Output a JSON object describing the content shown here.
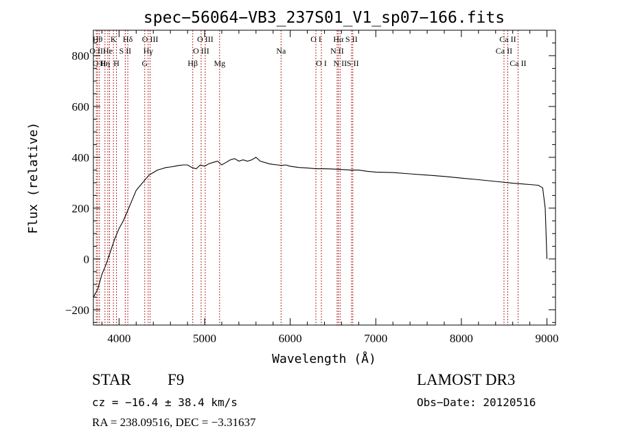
{
  "chart_data": {
    "type": "line",
    "title": "spec−56064−VB3_237S01_V1_sp07−166.fits",
    "xlabel": "Wavelength (Å)",
    "ylabel": "Flux (relative)",
    "xlim": [
      3700,
      9100
    ],
    "ylim": [
      -260,
      900
    ],
    "x_ticks": [
      {
        "value": 4000,
        "label": "4000"
      },
      {
        "value": 5000,
        "label": "5000"
      },
      {
        "value": 6000,
        "label": "6000"
      },
      {
        "value": 7000,
        "label": "7000"
      },
      {
        "value": 8000,
        "label": "8000"
      },
      {
        "value": 9000,
        "label": "9000"
      }
    ],
    "y_ticks": [
      {
        "value": -200,
        "label": "−200"
      },
      {
        "value": 0,
        "label": "0"
      },
      {
        "value": 200,
        "label": "200"
      },
      {
        "value": 400,
        "label": "400"
      },
      {
        "value": 600,
        "label": "600"
      },
      {
        "value": 800,
        "label": "800"
      }
    ],
    "series": [
      {
        "name": "flux",
        "x": [
          3700,
          3750,
          3800,
          3850,
          3900,
          3950,
          4000,
          4050,
          4100,
          4150,
          4200,
          4250,
          4300,
          4350,
          4400,
          4450,
          4500,
          4550,
          4600,
          4650,
          4700,
          4750,
          4800,
          4850,
          4900,
          4950,
          5000,
          5050,
          5100,
          5150,
          5200,
          5250,
          5300,
          5350,
          5400,
          5450,
          5500,
          5550,
          5600,
          5650,
          5700,
          5750,
          5800,
          5850,
          5900,
          5950,
          6000,
          6100,
          6200,
          6300,
          6400,
          6500,
          6600,
          6700,
          6800,
          6900,
          7000,
          7200,
          7400,
          7600,
          7800,
          8000,
          8200,
          8400,
          8600,
          8800,
          8900,
          8950,
          8980,
          9000
        ],
        "y": [
          -150,
          -120,
          -60,
          -20,
          30,
          80,
          120,
          150,
          190,
          230,
          270,
          290,
          310,
          330,
          340,
          350,
          355,
          360,
          362,
          365,
          368,
          370,
          370,
          360,
          355,
          370,
          365,
          375,
          380,
          385,
          370,
          380,
          390,
          395,
          385,
          390,
          385,
          390,
          400,
          385,
          380,
          375,
          372,
          370,
          368,
          370,
          365,
          360,
          358,
          355,
          355,
          354,
          352,
          350,
          350,
          345,
          342,
          340,
          335,
          330,
          325,
          318,
          312,
          305,
          298,
          293,
          290,
          280,
          200,
          0
        ]
      }
    ],
    "lines": [
      {
        "x": 3734,
        "label": "O II",
        "row": 2
      },
      {
        "x": 3750,
        "label": "Hθ",
        "row": 1
      },
      {
        "x": 3771,
        "label": "O II",
        "row": 3
      },
      {
        "x": 3835,
        "label": "Hη",
        "row": 3
      },
      {
        "x": 3869,
        "label": "He",
        "row": 2
      },
      {
        "x": 3889,
        "label": "",
        "row": 0
      },
      {
        "x": 3934,
        "label": "K",
        "row": 1
      },
      {
        "x": 3969,
        "label": "H",
        "row": 3
      },
      {
        "x": 4072,
        "label": "S II",
        "row": 2
      },
      {
        "x": 4102,
        "label": "Hδ",
        "row": 1
      },
      {
        "x": 4300,
        "label": "G",
        "row": 3
      },
      {
        "x": 4340,
        "label": "Hγ",
        "row": 2
      },
      {
        "x": 4363,
        "label": "O III",
        "row": 1
      },
      {
        "x": 4861,
        "label": "Hβ",
        "row": 3
      },
      {
        "x": 4959,
        "label": "O III",
        "row": 2
      },
      {
        "x": 5007,
        "label": "O III",
        "row": 1
      },
      {
        "x": 5175,
        "label": "Mg",
        "row": 3
      },
      {
        "x": 5893,
        "label": "Na",
        "row": 2
      },
      {
        "x": 6300,
        "label": "O I",
        "row": 1
      },
      {
        "x": 6364,
        "label": "O I",
        "row": 3
      },
      {
        "x": 6548,
        "label": "N II",
        "row": 2
      },
      {
        "x": 6563,
        "label": "Hα",
        "row": 1
      },
      {
        "x": 6583,
        "label": "N II",
        "row": 3
      },
      {
        "x": 6716,
        "label": "S II",
        "row": 1
      },
      {
        "x": 6731,
        "label": "S II",
        "row": 3
      },
      {
        "x": 8498,
        "label": "Ca II",
        "row": 2
      },
      {
        "x": 8542,
        "label": "Ca II",
        "row": 1
      },
      {
        "x": 8662,
        "label": "Ca II",
        "row": 3
      }
    ]
  },
  "info": {
    "class": "STAR",
    "subclass": "F9",
    "survey": "LAMOST DR3",
    "cz": "cz = −16.4 ± 38.4 km/s",
    "obs_date": "Obs−Date: 20120516",
    "coords": "RA = 238.09516, DEC =  −3.31637"
  }
}
